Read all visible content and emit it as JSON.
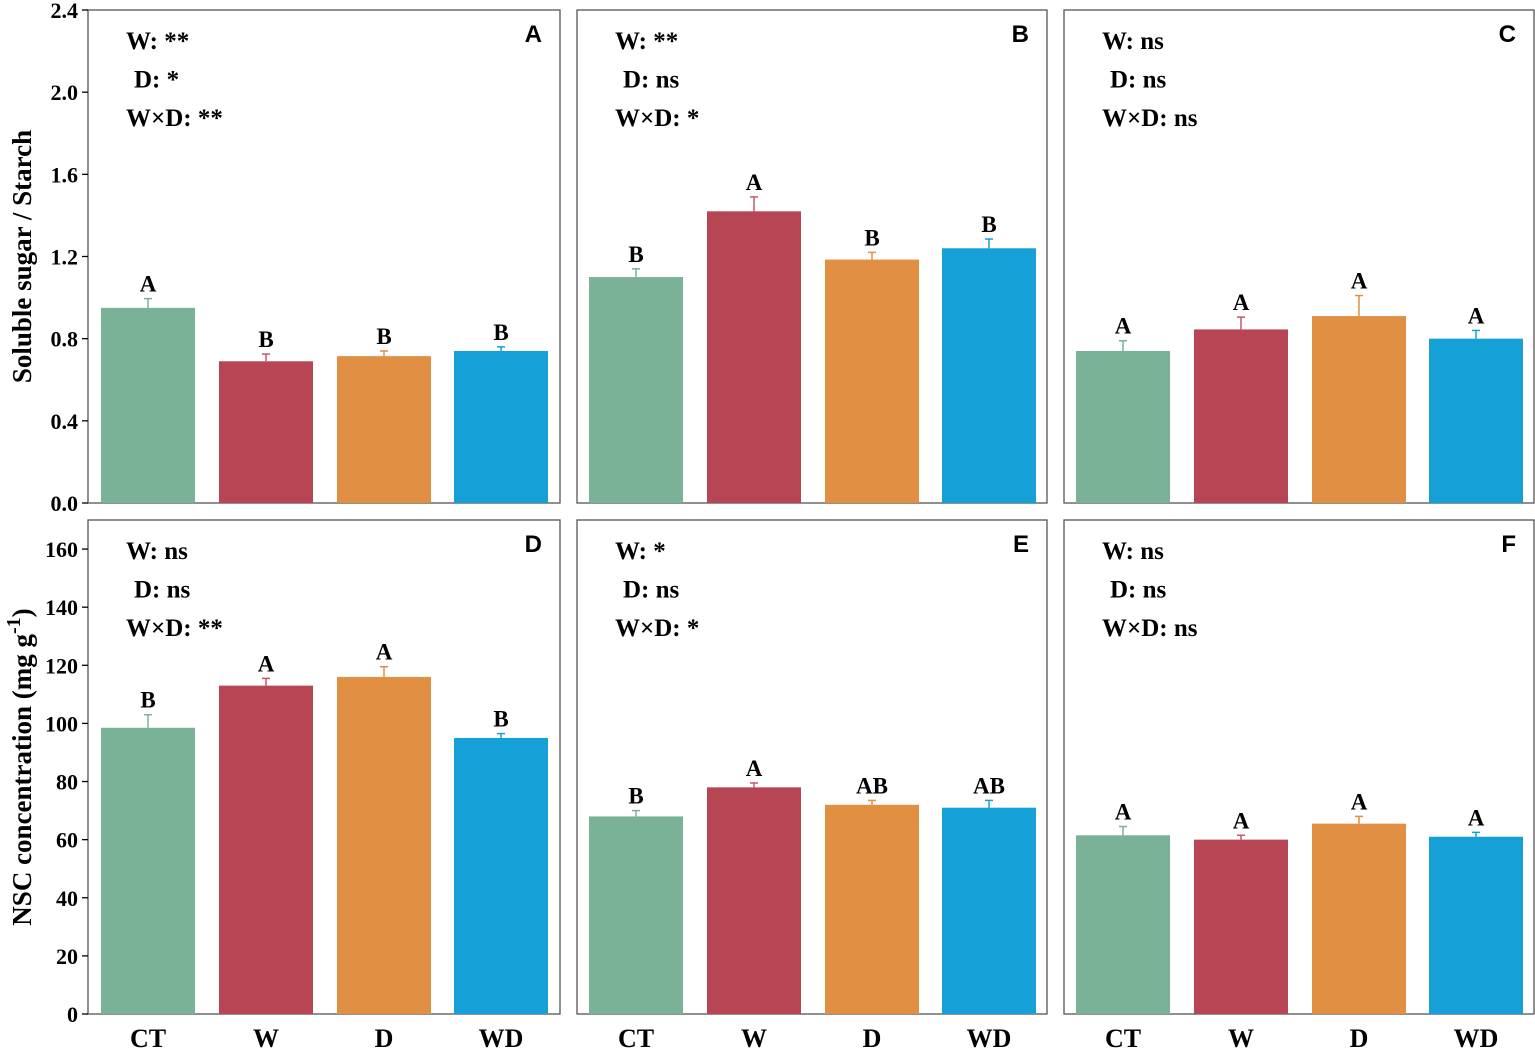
{
  "chart_data": [
    {
      "panel": "A",
      "type": "bar",
      "categories": [
        "CT",
        "W",
        "D",
        "WD"
      ],
      "values": [
        0.95,
        0.69,
        0.715,
        0.74
      ],
      "errors": [
        0.045,
        0.035,
        0.025,
        0.02
      ],
      "letters": [
        "A",
        "B",
        "B",
        "B"
      ],
      "stats": [
        "W: **",
        "D: *",
        "W×D: **"
      ],
      "ylabel": "Soluble sugar / Starch",
      "ylim": [
        0,
        2.4
      ],
      "yticks": [
        "0.0",
        "0.4",
        "0.8",
        "1.2",
        "1.6",
        "2.0",
        "2.4"
      ]
    },
    {
      "panel": "B",
      "type": "bar",
      "categories": [
        "CT",
        "W",
        "D",
        "WD"
      ],
      "values": [
        1.1,
        1.42,
        1.185,
        1.24
      ],
      "errors": [
        0.04,
        0.07,
        0.035,
        0.045
      ],
      "letters": [
        "B",
        "A",
        "B",
        "B"
      ],
      "stats": [
        "W: **",
        "D: ns",
        "W×D: *"
      ],
      "ylim": [
        0,
        2.4
      ]
    },
    {
      "panel": "C",
      "type": "bar",
      "categories": [
        "CT",
        "W",
        "D",
        "WD"
      ],
      "values": [
        0.74,
        0.845,
        0.91,
        0.8
      ],
      "errors": [
        0.05,
        0.06,
        0.1,
        0.04
      ],
      "letters": [
        "A",
        "A",
        "A",
        "A"
      ],
      "stats": [
        "W: ns",
        "D: ns",
        "W×D: ns"
      ],
      "ylim": [
        0,
        2.4
      ]
    },
    {
      "panel": "D",
      "type": "bar",
      "categories": [
        "CT",
        "W",
        "D",
        "WD"
      ],
      "values": [
        98.5,
        113,
        116,
        95
      ],
      "errors": [
        4.5,
        2.5,
        3.5,
        1.5
      ],
      "letters": [
        "B",
        "A",
        "A",
        "B"
      ],
      "stats": [
        "W: ns",
        "D: ns",
        "W×D: **"
      ],
      "ylabel": "NSC concentration (mg g",
      "ylabel_sup": "-1",
      "ylabel_end": ")",
      "ylim": [
        0,
        170
      ],
      "yticks": [
        "0",
        "20",
        "40",
        "60",
        "80",
        "100",
        "120",
        "140",
        "160"
      ]
    },
    {
      "panel": "E",
      "type": "bar",
      "categories": [
        "CT",
        "W",
        "D",
        "WD"
      ],
      "values": [
        68,
        78,
        72,
        71
      ],
      "errors": [
        2,
        1.5,
        1.5,
        2.5
      ],
      "letters": [
        "B",
        "A",
        "AB",
        "AB"
      ],
      "stats": [
        "W: *",
        "D: ns",
        "W×D: *"
      ],
      "ylim": [
        0,
        170
      ]
    },
    {
      "panel": "F",
      "type": "bar",
      "categories": [
        "CT",
        "W",
        "D",
        "WD"
      ],
      "values": [
        61.5,
        60,
        65.5,
        61
      ],
      "errors": [
        3,
        1.5,
        2.5,
        1.5
      ],
      "letters": [
        "A",
        "A",
        "A",
        "A"
      ],
      "stats": [
        "W: ns",
        "D: ns",
        "W×D: ns"
      ],
      "ylim": [
        0,
        170
      ]
    }
  ],
  "colors": {
    "CT": "#7ab297",
    "W": "#b84554",
    "D": "#e18f42",
    "WD": "#15a0d8",
    "axis": "#555555",
    "error_bars": [
      "#7ab297",
      "#c35968",
      "#e18f42",
      "#15a0d8"
    ]
  }
}
